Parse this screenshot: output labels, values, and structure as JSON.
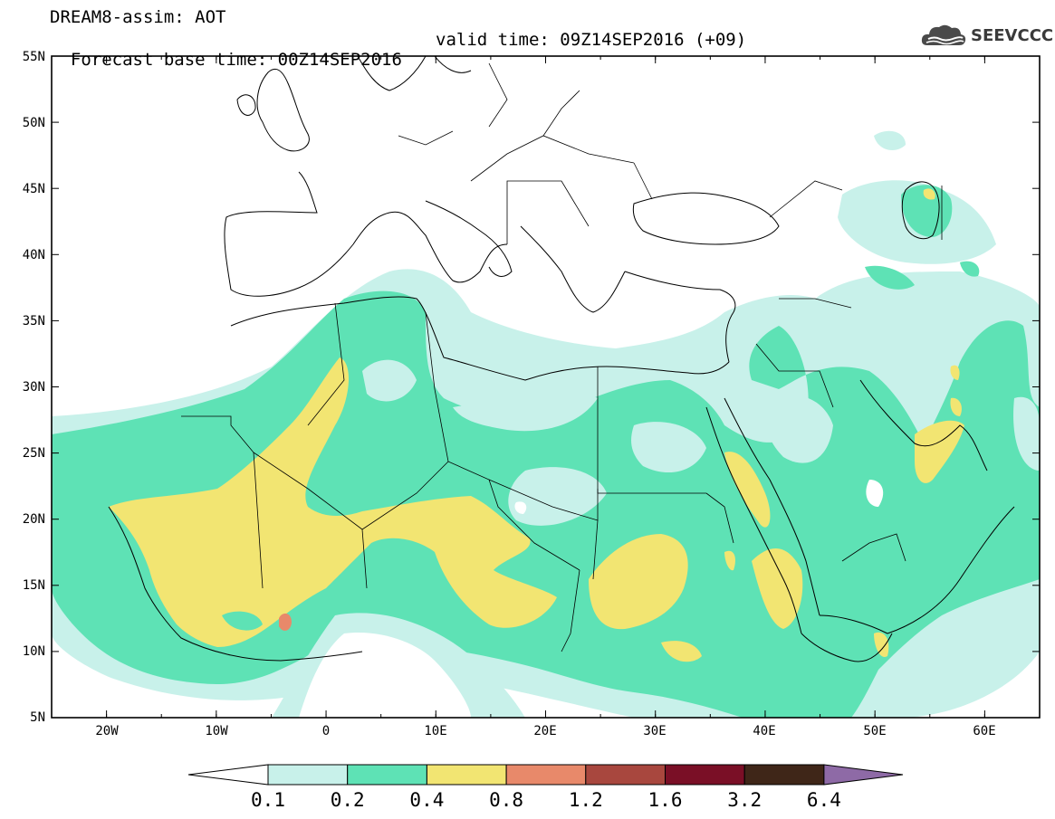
{
  "header": {
    "title_line1": "DREAM8-assim: AOT",
    "base_time": "Forecast base time: 00Z14SEP2016",
    "valid_time": "valid time: 09Z14SEP2016 (+09)",
    "logo_text": "SEEVCCC",
    "logo_icon": "cloud-icon"
  },
  "map": {
    "lat_labels": [
      "55N",
      "50N",
      "45N",
      "40N",
      "35N",
      "30N",
      "25N",
      "20N",
      "15N",
      "10N",
      "5N"
    ],
    "lon_labels": [
      "20W",
      "10W",
      "0",
      "10E",
      "20E",
      "30E",
      "40E",
      "50E",
      "60E"
    ],
    "lon_range": [
      -25,
      65
    ],
    "lat_range": [
      5,
      55
    ],
    "field": "Aerosol Optical Thickness"
  },
  "colorbar": {
    "ticks": [
      "0.1",
      "0.2",
      "0.4",
      "0.8",
      "1.2",
      "1.6",
      "3.2",
      "6.4"
    ],
    "colors": [
      "#ffffff",
      "#c8f1ea",
      "#5ee2b5",
      "#f2e572",
      "#e8896a",
      "#a8473e",
      "#7a0f26",
      "#3f2618",
      "#8e6aa6"
    ]
  }
}
